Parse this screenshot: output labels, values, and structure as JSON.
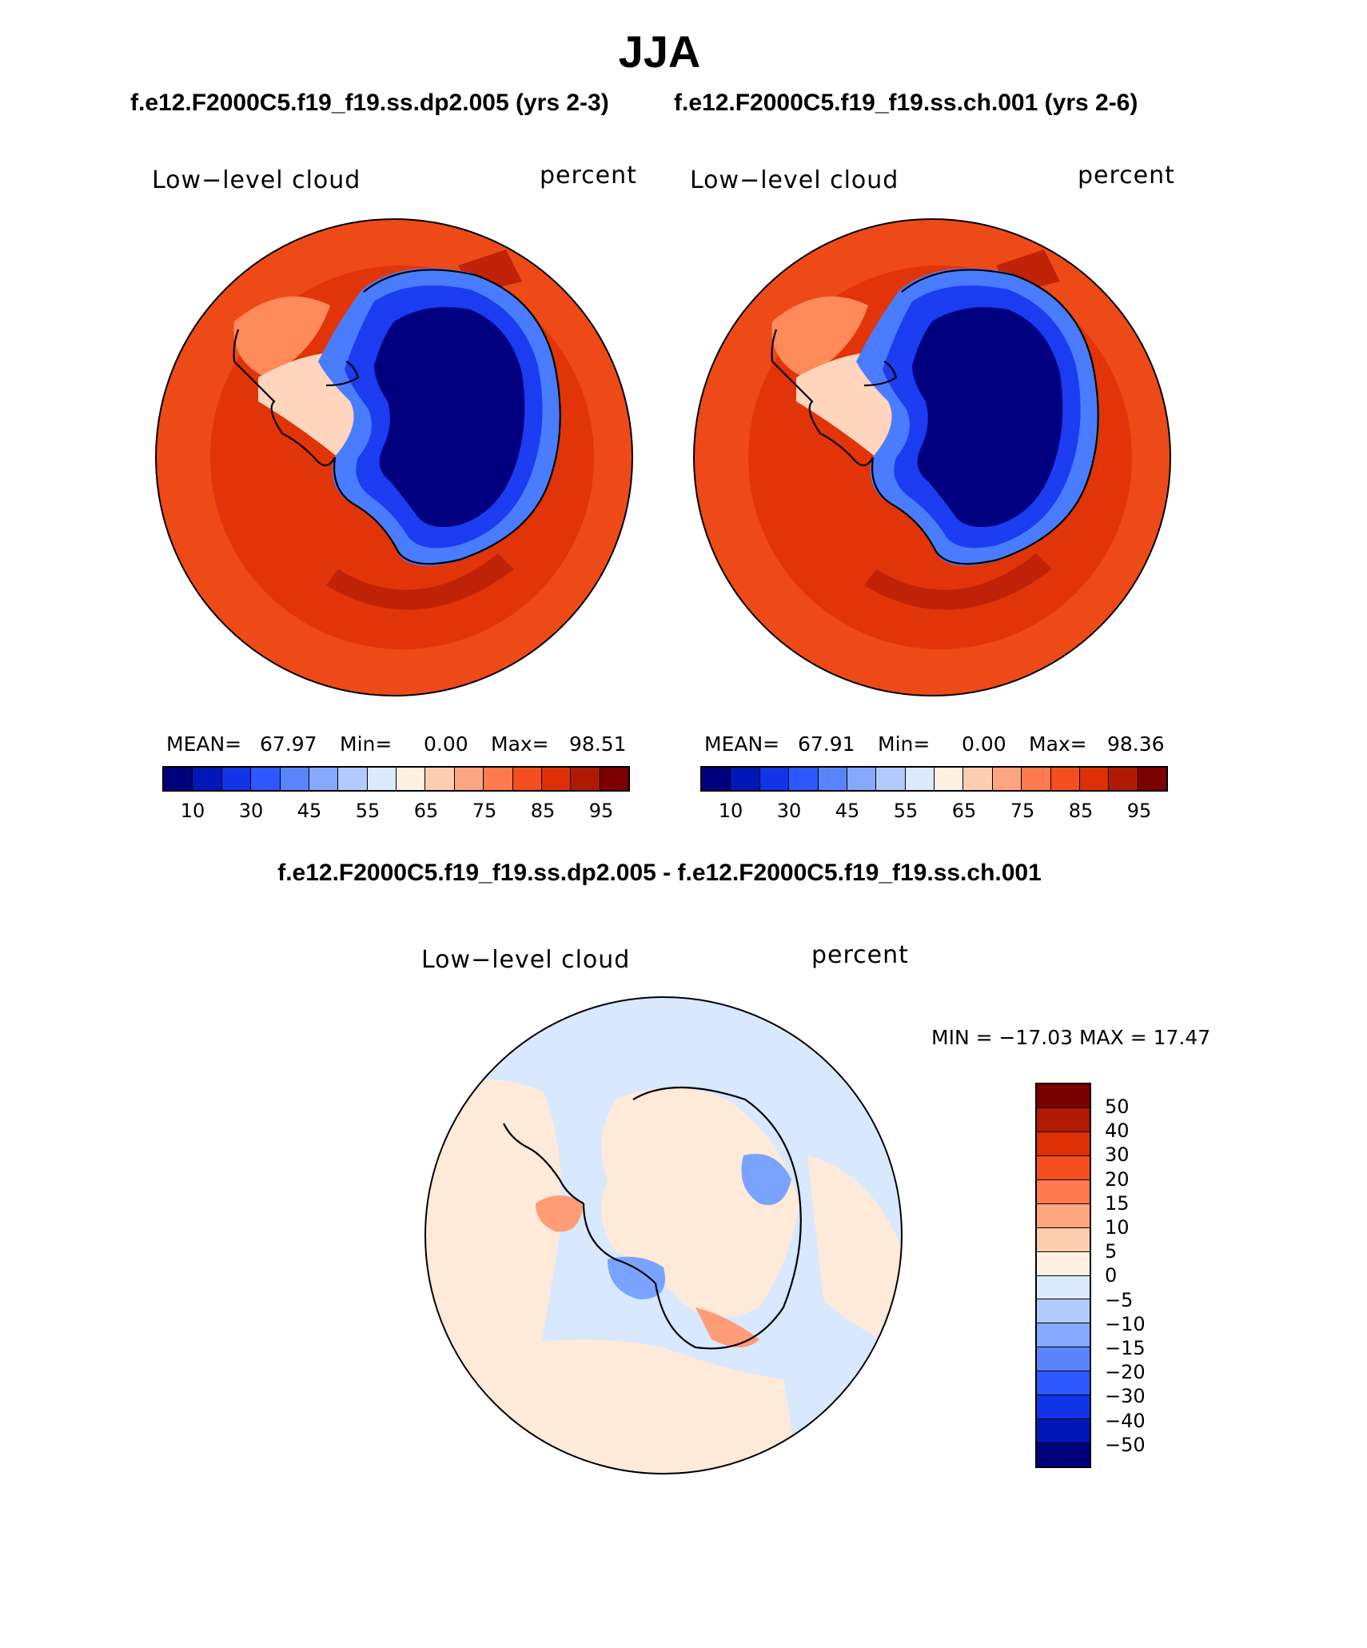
{
  "title": "JJA",
  "case1_title": "f.e12.F2000C5.f19_f19.ss.dp2.005 (yrs 2-3)",
  "case2_title": "f.e12.F2000C5.f19_f19.ss.ch.001 (yrs 2-6)",
  "diff_title": "f.e12.F2000C5.f19_f19.ss.dp2.005 - f.e12.F2000C5.f19_f19.ss.ch.001",
  "panels": [
    {
      "variable": "Low−level cloud",
      "units": "percent",
      "mean_label": "MEAN=",
      "mean": "67.97",
      "min_label": "Min=",
      "min": "0.00",
      "max_label": "Max=",
      "max": "98.51"
    },
    {
      "variable": "Low−level cloud",
      "units": "percent",
      "mean_label": "MEAN=",
      "mean": "67.91",
      "min_label": "Min=",
      "min": "0.00",
      "max_label": "Max=",
      "max": "98.36"
    }
  ],
  "diff_panel": {
    "variable": "Low−level cloud",
    "units": "percent",
    "minmax": "MIN = −17.03 MAX =   17.47"
  },
  "colorbar_ticks": [
    "10",
    "30",
    "45",
    "55",
    "65",
    "75",
    "85",
    "95"
  ],
  "colorbar_colors": [
    "#00007c",
    "#0018b8",
    "#1134e8",
    "#2e58ff",
    "#5a84ff",
    "#86a8ff",
    "#b2caff",
    "#dceaff",
    "#fff0e2",
    "#ffcdb0",
    "#ffa680",
    "#ff7a4e",
    "#f54f20",
    "#de3006",
    "#b01a02",
    "#7c0000"
  ],
  "diff_ticks": [
    "50",
    "40",
    "30",
    "20",
    "15",
    "10",
    "5",
    "0",
    "−5",
    "−10",
    "−15",
    "−20",
    "−30",
    "−40",
    "−50"
  ],
  "diff_colors": [
    "#7c0000",
    "#b01a02",
    "#de3006",
    "#f54f20",
    "#ff7a4e",
    "#ffa680",
    "#ffcdb0",
    "#fff0e2",
    "#dceaff",
    "#b2caff",
    "#86a8ff",
    "#5a84ff",
    "#2e58ff",
    "#1134e8",
    "#0018b8",
    "#00007c"
  ],
  "map_colors": {
    "ocean_far": "#ed4a17",
    "ocean_band": "#e13408",
    "ocean_high": "#c02208",
    "ocean_light": "#ff8a5a",
    "coast_pale": "#ffd5be",
    "ice_light": "#4a7cff",
    "ice_mid": "#1b3cf0",
    "ice_core": "#000080",
    "diff_neutral_pos": "#ffe9d9",
    "diff_neutral_neg": "#d7e8ff",
    "diff_blue": "#7aa2ff",
    "diff_red": "#ff9c78"
  }
}
